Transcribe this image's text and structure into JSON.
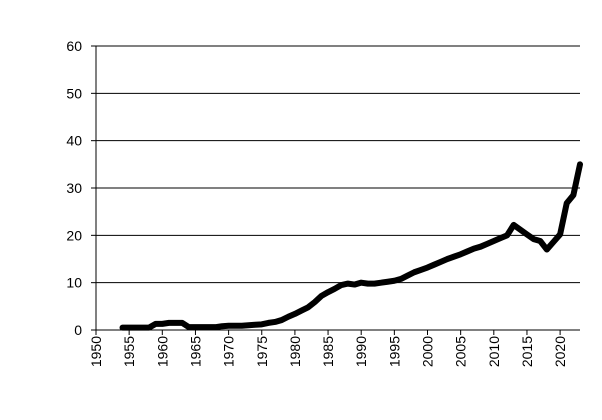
{
  "chart_data": {
    "type": "line",
    "title": "",
    "xlabel": "",
    "ylabel": "",
    "xlim": [
      1950,
      2023
    ],
    "ylim": [
      0,
      60
    ],
    "x_ticks": [
      1950,
      1955,
      1960,
      1965,
      1970,
      1975,
      1980,
      1985,
      1990,
      1995,
      2000,
      2005,
      2010,
      2015,
      2020
    ],
    "y_ticks": [
      0,
      10,
      20,
      30,
      40,
      50,
      60
    ],
    "grid": "horizontal",
    "legend": "none",
    "series_color": "#000000",
    "series": [
      {
        "x": [
          1954,
          1955,
          1956,
          1957,
          1958,
          1959,
          1960,
          1961,
          1962,
          1963,
          1964,
          1965,
          1966,
          1967,
          1968,
          1969,
          1970,
          1971,
          1972,
          1973,
          1974,
          1975,
          1976,
          1977,
          1978,
          1979,
          1980,
          1981,
          1982,
          1983,
          1984,
          1985,
          1986,
          1987,
          1988,
          1989,
          1990,
          1991,
          1992,
          1993,
          1994,
          1995,
          1996,
          1997,
          1998,
          1999,
          2000,
          2001,
          2002,
          2003,
          2004,
          2005,
          2006,
          2007,
          2008,
          2009,
          2010,
          2011,
          2012,
          2013,
          2014,
          2015,
          2016,
          2017,
          2018,
          2019,
          2020,
          2021,
          2022,
          2023
        ],
        "y": [
          0.5,
          0.5,
          0.5,
          0.5,
          0.5,
          1.3,
          1.3,
          1.5,
          1.5,
          1.5,
          0.6,
          0.6,
          0.6,
          0.6,
          0.6,
          0.8,
          0.9,
          0.9,
          0.9,
          1.0,
          1.1,
          1.2,
          1.5,
          1.7,
          2.1,
          2.8,
          3.4,
          4.1,
          4.8,
          5.9,
          7.2,
          8.0,
          8.7,
          9.5,
          9.8,
          9.6,
          10.0,
          9.8,
          9.8,
          10.0,
          10.2,
          10.4,
          10.8,
          11.5,
          12.2,
          12.7,
          13.2,
          13.8,
          14.4,
          15.0,
          15.5,
          16.0,
          16.6,
          17.2,
          17.6,
          18.2,
          18.8,
          19.4,
          20.0,
          22.2,
          21.2,
          20.2,
          19.2,
          18.8,
          17.0,
          18.6,
          20.2,
          26.8,
          28.5,
          35.0
        ]
      }
    ]
  }
}
